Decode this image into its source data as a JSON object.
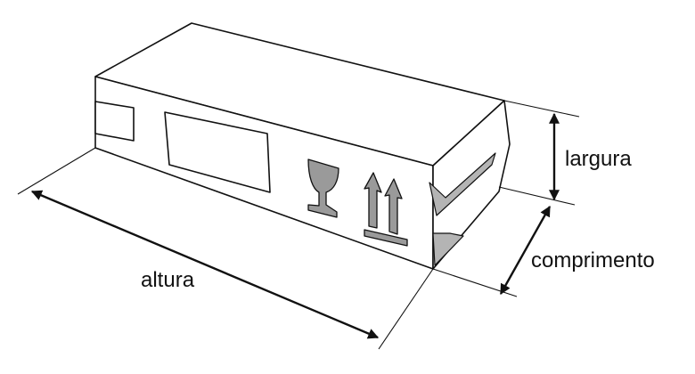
{
  "labels": {
    "altura": "altura",
    "largura": "largura",
    "comprimento": "comprimento"
  },
  "icons": [
    "fragile-glass-icon",
    "this-way-up-arrows-icon"
  ],
  "colors": {
    "stroke": "#111111",
    "icon_fill": "#9a9a9a",
    "side_flap_fill": "#b4b4b4",
    "background": "#ffffff"
  }
}
